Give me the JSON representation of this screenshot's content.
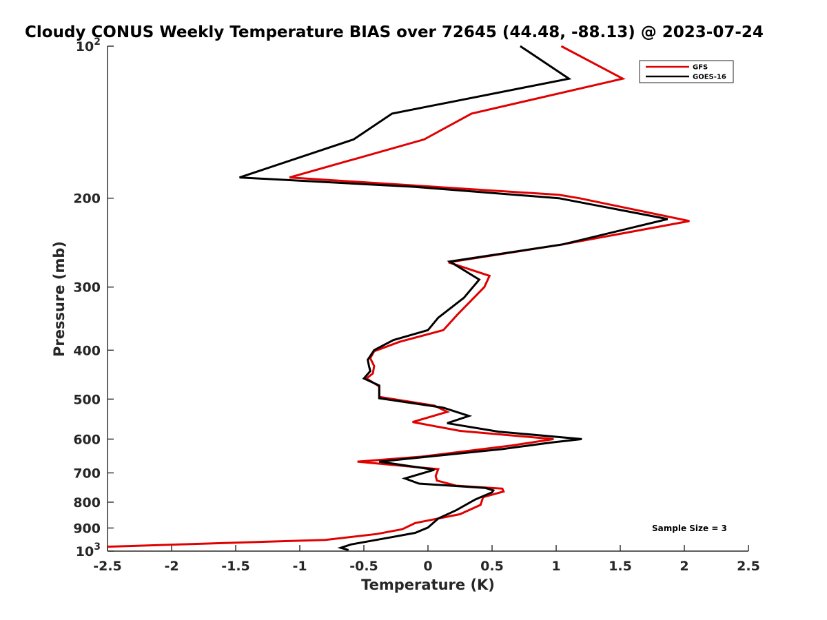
{
  "chart_data": {
    "type": "line",
    "title": "Cloudy CONUS Weekly Temperature BIAS over 72645 (44.48, -88.13) @ 2023-07-24",
    "xlabel": "Temperature (K)",
    "ylabel": "Pressure (mb)",
    "xlim": [
      -2.5,
      2.5
    ],
    "ylim": [
      100,
      1000
    ],
    "yscale": "log",
    "yreversed": true,
    "x_ticks": [
      "-2.5",
      "-2",
      "-1.5",
      "-1",
      "-0.5",
      "0",
      "0.5",
      "1",
      "1.5",
      "2",
      "2.5"
    ],
    "x_tick_values": [
      -2.5,
      -2,
      -1.5,
      -1,
      -0.5,
      0,
      0.5,
      1,
      1.5,
      2,
      2.5
    ],
    "y_ticks": [
      {
        "value": 100,
        "label": "10",
        "exp": "2"
      },
      {
        "value": 200,
        "label": "200",
        "exp": ""
      },
      {
        "value": 300,
        "label": "300",
        "exp": ""
      },
      {
        "value": 400,
        "label": "400",
        "exp": ""
      },
      {
        "value": 500,
        "label": "500",
        "exp": ""
      },
      {
        "value": 600,
        "label": "600",
        "exp": ""
      },
      {
        "value": 700,
        "label": "700",
        "exp": ""
      },
      {
        "value": 800,
        "label": "800",
        "exp": ""
      },
      {
        "value": 900,
        "label": "900",
        "exp": ""
      },
      {
        "value": 1000,
        "label": "10",
        "exp": "3"
      }
    ],
    "grid": false,
    "legend_position": "top-right",
    "annotation": "Sample Size = 3",
    "series": [
      {
        "name": "GFS",
        "color": "#e00000",
        "points": [
          [
            1.04,
            100
          ],
          [
            1.52,
            116
          ],
          [
            0.34,
            136
          ],
          [
            -0.03,
            153
          ],
          [
            -1.08,
            182
          ],
          [
            1.02,
            197
          ],
          [
            1.18,
            200
          ],
          [
            2.04,
            222
          ],
          [
            1.05,
            247
          ],
          [
            0.16,
            268
          ],
          [
            0.48,
            285
          ],
          [
            0.44,
            300
          ],
          [
            0.23,
            340
          ],
          [
            0.12,
            365
          ],
          [
            -0.22,
            385
          ],
          [
            -0.42,
            402
          ],
          [
            -0.45,
            415
          ],
          [
            -0.42,
            430
          ],
          [
            -0.43,
            445
          ],
          [
            -0.48,
            455
          ],
          [
            -0.38,
            472
          ],
          [
            -0.38,
            495
          ],
          [
            0.05,
            515
          ],
          [
            0.15,
            530
          ],
          [
            -0.12,
            555
          ],
          [
            0.25,
            578
          ],
          [
            0.98,
            600
          ],
          [
            0.65,
            618
          ],
          [
            -0.05,
            650
          ],
          [
            -0.55,
            665
          ],
          [
            0.08,
            688
          ],
          [
            0.06,
            710
          ],
          [
            0.07,
            725
          ],
          [
            0.22,
            742
          ],
          [
            0.58,
            752
          ],
          [
            0.59,
            762
          ],
          [
            0.43,
            782
          ],
          [
            0.41,
            810
          ],
          [
            0.25,
            845
          ],
          [
            -0.1,
            880
          ],
          [
            -0.2,
            905
          ],
          [
            -0.4,
            925
          ],
          [
            -0.8,
            950
          ],
          [
            -2.5,
            980
          ]
        ]
      },
      {
        "name": "GOES-16",
        "color": "#000000",
        "points": [
          [
            0.72,
            100
          ],
          [
            1.1,
            116
          ],
          [
            -0.28,
            136
          ],
          [
            -0.58,
            153
          ],
          [
            -1.47,
            182
          ],
          [
            -0.1,
            190
          ],
          [
            1.02,
            200
          ],
          [
            1.87,
            220
          ],
          [
            1.05,
            247
          ],
          [
            0.17,
            267
          ],
          [
            0.4,
            290
          ],
          [
            0.28,
            315
          ],
          [
            0.08,
            345
          ],
          [
            0.0,
            365
          ],
          [
            -0.27,
            382
          ],
          [
            -0.42,
            400
          ],
          [
            -0.47,
            418
          ],
          [
            -0.46,
            430
          ],
          [
            -0.45,
            440
          ],
          [
            -0.5,
            455
          ],
          [
            -0.38,
            470
          ],
          [
            -0.38,
            498
          ],
          [
            0.12,
            520
          ],
          [
            0.32,
            540
          ],
          [
            0.15,
            558
          ],
          [
            0.55,
            580
          ],
          [
            1.2,
            600
          ],
          [
            0.95,
            610
          ],
          [
            0.58,
            628
          ],
          [
            -0.38,
            665
          ],
          [
            0.05,
            690
          ],
          [
            -0.18,
            718
          ],
          [
            -0.07,
            735
          ],
          [
            0.45,
            750
          ],
          [
            0.51,
            758
          ],
          [
            0.5,
            765
          ],
          [
            0.37,
            790
          ],
          [
            0.22,
            830
          ],
          [
            0.08,
            862
          ],
          [
            0.0,
            898
          ],
          [
            -0.1,
            920
          ],
          [
            -0.3,
            940
          ],
          [
            -0.6,
            970
          ],
          [
            -0.68,
            985
          ],
          [
            -0.62,
            995
          ]
        ]
      }
    ]
  }
}
